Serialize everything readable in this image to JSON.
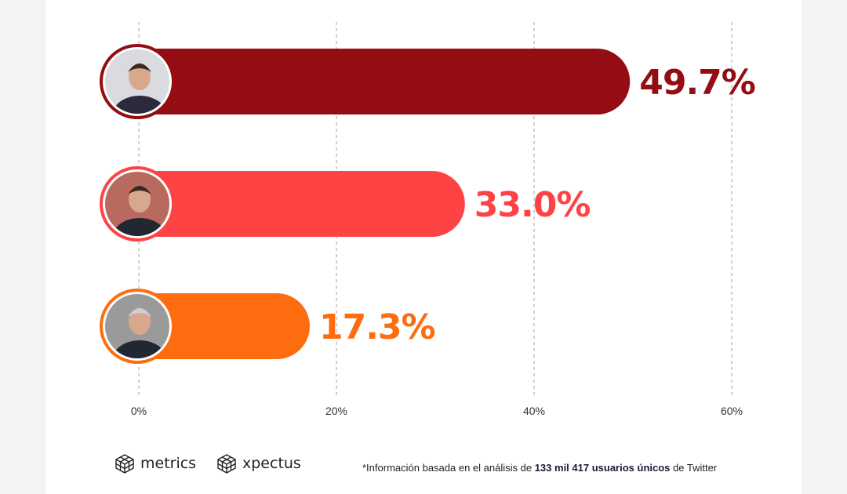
{
  "chart_data": {
    "type": "bar",
    "orientation": "horizontal",
    "categories": [
      "candidate-1",
      "candidate-2",
      "candidate-3"
    ],
    "values": [
      49.7,
      33.0,
      17.3
    ],
    "data_labels": [
      "49.7%",
      "33.0%",
      "17.3%"
    ],
    "colors": [
      "#930d12",
      "#fe4345",
      "#fd6d0f"
    ],
    "xlim": [
      0,
      60
    ],
    "xticks": [
      0,
      20,
      40,
      60
    ],
    "xtick_labels": [
      "0%",
      "20%",
      "40%",
      "60%"
    ],
    "grid": "vertical-dashed",
    "xlabel": "",
    "ylabel": "",
    "title": ""
  },
  "footer": {
    "logos": [
      {
        "icon": "cube-grid-icon",
        "label": "metrics"
      },
      {
        "icon": "cube-grid-icon",
        "label": "xpectus"
      }
    ],
    "note_prefix": "*Información basada en el análisis de ",
    "note_bold": "133 mil 417 usuarios únicos",
    "note_suffix": " de Twitter"
  }
}
